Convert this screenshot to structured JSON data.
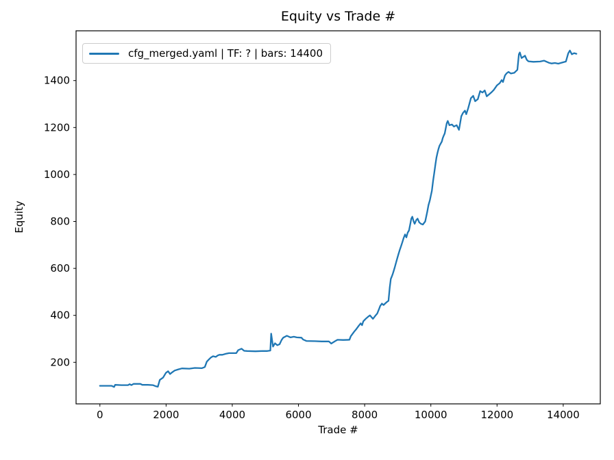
{
  "chart_data": {
    "type": "line",
    "title": "Equity vs Trade #",
    "xlabel": "Trade #",
    "ylabel": "Equity",
    "grid": false,
    "legend_position": "upper left",
    "legend": [
      {
        "label": "cfg_merged.yaml | TF: ? | bars: 14400",
        "color": "#1f77b4"
      }
    ],
    "colors": {
      "line": "#1f77b4",
      "spine": "#000000",
      "legend_border": "#cccccc",
      "background": "#ffffff"
    },
    "xlim": [
      -720,
      15120
    ],
    "ylim": [
      23,
      1612
    ],
    "x_ticks": [
      0,
      2000,
      4000,
      6000,
      8000,
      10000,
      12000,
      14000
    ],
    "y_ticks": [
      200,
      400,
      600,
      800,
      1000,
      1200,
      1400
    ],
    "series": [
      {
        "name": "cfg_merged.yaml | TF: ? | bars: 14400",
        "points": [
          [
            0,
            100
          ],
          [
            200,
            100
          ],
          [
            350,
            100
          ],
          [
            430,
            95
          ],
          [
            460,
            104
          ],
          [
            650,
            103
          ],
          [
            850,
            103
          ],
          [
            900,
            107
          ],
          [
            950,
            103
          ],
          [
            1020,
            108
          ],
          [
            1225,
            108
          ],
          [
            1280,
            104
          ],
          [
            1450,
            104
          ],
          [
            1600,
            103
          ],
          [
            1690,
            98
          ],
          [
            1750,
            96
          ],
          [
            1810,
            125
          ],
          [
            1910,
            135
          ],
          [
            1995,
            155
          ],
          [
            2060,
            162
          ],
          [
            2120,
            150
          ],
          [
            2190,
            158
          ],
          [
            2260,
            165
          ],
          [
            2370,
            170
          ],
          [
            2480,
            174
          ],
          [
            2700,
            173
          ],
          [
            2870,
            176
          ],
          [
            3080,
            175
          ],
          [
            3170,
            180
          ],
          [
            3230,
            203
          ],
          [
            3300,
            213
          ],
          [
            3350,
            220
          ],
          [
            3420,
            226
          ],
          [
            3500,
            223
          ],
          [
            3560,
            229
          ],
          [
            3610,
            232
          ],
          [
            3700,
            232
          ],
          [
            3800,
            236
          ],
          [
            3900,
            239
          ],
          [
            4120,
            239
          ],
          [
            4180,
            252
          ],
          [
            4280,
            258
          ],
          [
            4360,
            249
          ],
          [
            4450,
            248
          ],
          [
            4700,
            247
          ],
          [
            4900,
            248
          ],
          [
            5060,
            248
          ],
          [
            5150,
            250
          ],
          [
            5175,
            322
          ],
          [
            5230,
            267
          ],
          [
            5290,
            281
          ],
          [
            5360,
            273
          ],
          [
            5430,
            277
          ],
          [
            5490,
            295
          ],
          [
            5540,
            305
          ],
          [
            5650,
            313
          ],
          [
            5760,
            306
          ],
          [
            5860,
            309
          ],
          [
            5950,
            306
          ],
          [
            6090,
            305
          ],
          [
            6140,
            297
          ],
          [
            6240,
            291
          ],
          [
            6500,
            290
          ],
          [
            6700,
            289
          ],
          [
            6920,
            289
          ],
          [
            6990,
            280
          ],
          [
            7130,
            292
          ],
          [
            7180,
            296
          ],
          [
            7350,
            295
          ],
          [
            7540,
            296
          ],
          [
            7580,
            311
          ],
          [
            7680,
            330
          ],
          [
            7750,
            342
          ],
          [
            7820,
            355
          ],
          [
            7880,
            366
          ],
          [
            7920,
            358
          ],
          [
            7960,
            375
          ],
          [
            8030,
            385
          ],
          [
            8100,
            394
          ],
          [
            8160,
            400
          ],
          [
            8250,
            385
          ],
          [
            8320,
            398
          ],
          [
            8380,
            408
          ],
          [
            8430,
            425
          ],
          [
            8470,
            440
          ],
          [
            8520,
            450
          ],
          [
            8570,
            444
          ],
          [
            8640,
            453
          ],
          [
            8680,
            458
          ],
          [
            8720,
            462
          ],
          [
            8760,
            520
          ],
          [
            8790,
            555
          ],
          [
            8820,
            565
          ],
          [
            8850,
            577
          ],
          [
            8880,
            590
          ],
          [
            8910,
            605
          ],
          [
            8950,
            625
          ],
          [
            8990,
            645
          ],
          [
            9020,
            660
          ],
          [
            9060,
            678
          ],
          [
            9100,
            695
          ],
          [
            9140,
            712
          ],
          [
            9180,
            730
          ],
          [
            9220,
            745
          ],
          [
            9260,
            732
          ],
          [
            9300,
            752
          ],
          [
            9340,
            762
          ],
          [
            9380,
            790
          ],
          [
            9410,
            812
          ],
          [
            9440,
            820
          ],
          [
            9480,
            800
          ],
          [
            9510,
            790
          ],
          [
            9560,
            806
          ],
          [
            9600,
            812
          ],
          [
            9650,
            796
          ],
          [
            9700,
            790
          ],
          [
            9760,
            787
          ],
          [
            9830,
            800
          ],
          [
            9890,
            840
          ],
          [
            9930,
            870
          ],
          [
            9970,
            890
          ],
          [
            10000,
            910
          ],
          [
            10030,
            930
          ],
          [
            10070,
            975
          ],
          [
            10100,
            1005
          ],
          [
            10140,
            1045
          ],
          [
            10170,
            1072
          ],
          [
            10200,
            1092
          ],
          [
            10230,
            1108
          ],
          [
            10260,
            1122
          ],
          [
            10300,
            1132
          ],
          [
            10330,
            1140
          ],
          [
            10360,
            1155
          ],
          [
            10390,
            1166
          ],
          [
            10420,
            1175
          ],
          [
            10480,
            1218
          ],
          [
            10510,
            1228
          ],
          [
            10560,
            1210
          ],
          [
            10640,
            1213
          ],
          [
            10700,
            1204
          ],
          [
            10780,
            1210
          ],
          [
            10850,
            1190
          ],
          [
            10920,
            1248
          ],
          [
            10970,
            1262
          ],
          [
            11030,
            1272
          ],
          [
            11070,
            1257
          ],
          [
            11130,
            1283
          ],
          [
            11210,
            1325
          ],
          [
            11280,
            1335
          ],
          [
            11340,
            1312
          ],
          [
            11420,
            1321
          ],
          [
            11490,
            1355
          ],
          [
            11560,
            1349
          ],
          [
            11630,
            1358
          ],
          [
            11690,
            1333
          ],
          [
            11760,
            1341
          ],
          [
            11830,
            1350
          ],
          [
            11900,
            1360
          ],
          [
            12000,
            1380
          ],
          [
            12080,
            1389
          ],
          [
            12140,
            1402
          ],
          [
            12180,
            1394
          ],
          [
            12240,
            1422
          ],
          [
            12290,
            1431
          ],
          [
            12345,
            1437
          ],
          [
            12420,
            1430
          ],
          [
            12520,
            1433
          ],
          [
            12615,
            1446
          ],
          [
            12660,
            1512
          ],
          [
            12690,
            1520
          ],
          [
            12740,
            1496
          ],
          [
            12845,
            1506
          ],
          [
            12900,
            1488
          ],
          [
            12950,
            1482
          ],
          [
            13100,
            1480
          ],
          [
            13300,
            1481
          ],
          [
            13420,
            1485
          ],
          [
            13560,
            1476
          ],
          [
            13650,
            1473
          ],
          [
            13750,
            1475
          ],
          [
            13850,
            1472
          ],
          [
            13950,
            1476
          ],
          [
            14080,
            1481
          ],
          [
            14150,
            1516
          ],
          [
            14200,
            1528
          ],
          [
            14260,
            1512
          ],
          [
            14330,
            1517
          ],
          [
            14400,
            1514
          ]
        ]
      }
    ]
  }
}
